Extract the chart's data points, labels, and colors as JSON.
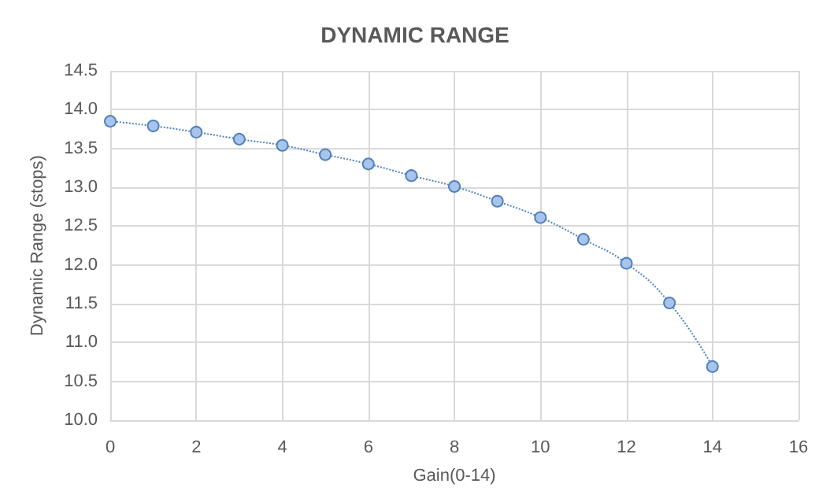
{
  "chart_data": {
    "type": "line",
    "title": "DYNAMIC RANGE",
    "xlabel": "Gain(0-14)",
    "ylabel": "Dynamic Range (stops)",
    "x": [
      0,
      1,
      2,
      3,
      4,
      5,
      6,
      7,
      8,
      9,
      10,
      11,
      12,
      13,
      14
    ],
    "series": [
      {
        "color": "#4f81bd",
        "values": [
          13.85,
          13.79,
          13.71,
          13.62,
          13.54,
          13.42,
          13.3,
          13.15,
          13.01,
          12.82,
          12.61,
          12.33,
          12.02,
          11.51,
          10.69
        ]
      }
    ],
    "xlim": [
      0,
      16
    ],
    "xticks": [
      0,
      2,
      4,
      6,
      8,
      10,
      12,
      14,
      16
    ],
    "ylim": [
      10,
      14.5
    ],
    "yticks": [
      {
        "value": 10,
        "label": "10.0"
      },
      10.5,
      {
        "value": 11,
        "label": "11.0"
      },
      11.5,
      {
        "value": 12,
        "label": "12.0"
      },
      12.5,
      {
        "value": 13,
        "label": "13.0"
      },
      13.5,
      {
        "value": 14,
        "label": "14.0"
      },
      14.5
    ],
    "grid": true,
    "marker": "circle",
    "line_style": "dotted"
  }
}
